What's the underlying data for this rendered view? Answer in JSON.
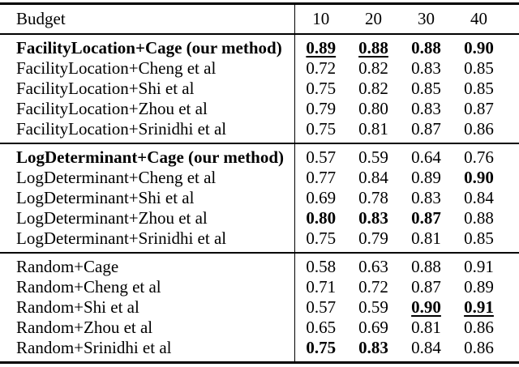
{
  "colors": {
    "text": "#000000",
    "background": "#ffffff",
    "rule": "#000000"
  },
  "table": {
    "header": {
      "label": "Budget",
      "columns": [
        "10",
        "20",
        "30",
        "40"
      ]
    },
    "sections": [
      {
        "name": "facility-location",
        "rows": [
          {
            "label": "FacilityLocation+Cage (our method)",
            "bold": true,
            "values": [
              {
                "v": "0.89",
                "bold": true,
                "underline": true
              },
              {
                "v": "0.88",
                "bold": true,
                "underline": true
              },
              {
                "v": "0.88",
                "bold": true,
                "underline": false
              },
              {
                "v": "0.90",
                "bold": true,
                "underline": false
              }
            ]
          },
          {
            "label": "FacilityLocation+Cheng et al",
            "bold": false,
            "values": [
              {
                "v": "0.72",
                "bold": false,
                "underline": false
              },
              {
                "v": "0.82",
                "bold": false,
                "underline": false
              },
              {
                "v": "0.83",
                "bold": false,
                "underline": false
              },
              {
                "v": "0.85",
                "bold": false,
                "underline": false
              }
            ]
          },
          {
            "label": "FacilityLocation+Shi et al",
            "bold": false,
            "values": [
              {
                "v": "0.75",
                "bold": false,
                "underline": false
              },
              {
                "v": "0.82",
                "bold": false,
                "underline": false
              },
              {
                "v": "0.85",
                "bold": false,
                "underline": false
              },
              {
                "v": "0.85",
                "bold": false,
                "underline": false
              }
            ]
          },
          {
            "label": "FacilityLocation+Zhou et al",
            "bold": false,
            "values": [
              {
                "v": "0.79",
                "bold": false,
                "underline": false
              },
              {
                "v": "0.80",
                "bold": false,
                "underline": false
              },
              {
                "v": "0.83",
                "bold": false,
                "underline": false
              },
              {
                "v": "0.87",
                "bold": false,
                "underline": false
              }
            ]
          },
          {
            "label": "FacilityLocation+Srinidhi et al",
            "bold": false,
            "values": [
              {
                "v": "0.75",
                "bold": false,
                "underline": false
              },
              {
                "v": "0.81",
                "bold": false,
                "underline": false
              },
              {
                "v": "0.87",
                "bold": false,
                "underline": false
              },
              {
                "v": "0.86",
                "bold": false,
                "underline": false
              }
            ]
          }
        ]
      },
      {
        "name": "log-determinant",
        "rows": [
          {
            "label": "LogDeterminant+Cage (our method)",
            "bold": true,
            "values": [
              {
                "v": "0.57",
                "bold": false,
                "underline": false
              },
              {
                "v": "0.59",
                "bold": false,
                "underline": false
              },
              {
                "v": "0.64",
                "bold": false,
                "underline": false
              },
              {
                "v": "0.76",
                "bold": false,
                "underline": false
              }
            ]
          },
          {
            "label": "LogDeterminant+Cheng et al",
            "bold": false,
            "values": [
              {
                "v": "0.77",
                "bold": false,
                "underline": false
              },
              {
                "v": "0.84",
                "bold": false,
                "underline": false
              },
              {
                "v": "0.89",
                "bold": false,
                "underline": false
              },
              {
                "v": "0.90",
                "bold": true,
                "underline": false
              }
            ]
          },
          {
            "label": "LogDeterminant+Shi et al",
            "bold": false,
            "values": [
              {
                "v": "0.69",
                "bold": false,
                "underline": false
              },
              {
                "v": "0.78",
                "bold": false,
                "underline": false
              },
              {
                "v": "0.83",
                "bold": false,
                "underline": false
              },
              {
                "v": "0.84",
                "bold": false,
                "underline": false
              }
            ]
          },
          {
            "label": "LogDeterminant+Zhou et al",
            "bold": false,
            "values": [
              {
                "v": "0.80",
                "bold": true,
                "underline": false
              },
              {
                "v": "0.83",
                "bold": true,
                "underline": false
              },
              {
                "v": "0.87",
                "bold": true,
                "underline": false
              },
              {
                "v": "0.88",
                "bold": false,
                "underline": false
              }
            ]
          },
          {
            "label": "LogDeterminant+Srinidhi et al",
            "bold": false,
            "values": [
              {
                "v": "0.75",
                "bold": false,
                "underline": false
              },
              {
                "v": "0.79",
                "bold": false,
                "underline": false
              },
              {
                "v": "0.81",
                "bold": false,
                "underline": false
              },
              {
                "v": "0.85",
                "bold": false,
                "underline": false
              }
            ]
          }
        ]
      },
      {
        "name": "random",
        "rows": [
          {
            "label": "Random+Cage",
            "bold": false,
            "values": [
              {
                "v": "0.58",
                "bold": false,
                "underline": false
              },
              {
                "v": "0.63",
                "bold": false,
                "underline": false
              },
              {
                "v": "0.88",
                "bold": false,
                "underline": false
              },
              {
                "v": "0.91",
                "bold": false,
                "underline": false
              }
            ]
          },
          {
            "label": "Random+Cheng et al",
            "bold": false,
            "values": [
              {
                "v": "0.71",
                "bold": false,
                "underline": false
              },
              {
                "v": "0.72",
                "bold": false,
                "underline": false
              },
              {
                "v": "0.87",
                "bold": false,
                "underline": false
              },
              {
                "v": "0.89",
                "bold": false,
                "underline": false
              }
            ]
          },
          {
            "label": "Random+Shi et al",
            "bold": false,
            "values": [
              {
                "v": "0.57",
                "bold": false,
                "underline": false
              },
              {
                "v": "0.59",
                "bold": false,
                "underline": false
              },
              {
                "v": "0.90",
                "bold": true,
                "underline": true
              },
              {
                "v": "0.91",
                "bold": true,
                "underline": true
              }
            ]
          },
          {
            "label": "Random+Zhou et al",
            "bold": false,
            "values": [
              {
                "v": "0.65",
                "bold": false,
                "underline": false
              },
              {
                "v": "0.69",
                "bold": false,
                "underline": false
              },
              {
                "v": "0.81",
                "bold": false,
                "underline": false
              },
              {
                "v": "0.86",
                "bold": false,
                "underline": false
              }
            ]
          },
          {
            "label": "Random+Srinidhi et al",
            "bold": false,
            "values": [
              {
                "v": "0.75",
                "bold": true,
                "underline": false
              },
              {
                "v": "0.83",
                "bold": true,
                "underline": false
              },
              {
                "v": "0.84",
                "bold": false,
                "underline": false
              },
              {
                "v": "0.86",
                "bold": false,
                "underline": false
              }
            ]
          }
        ]
      }
    ]
  }
}
